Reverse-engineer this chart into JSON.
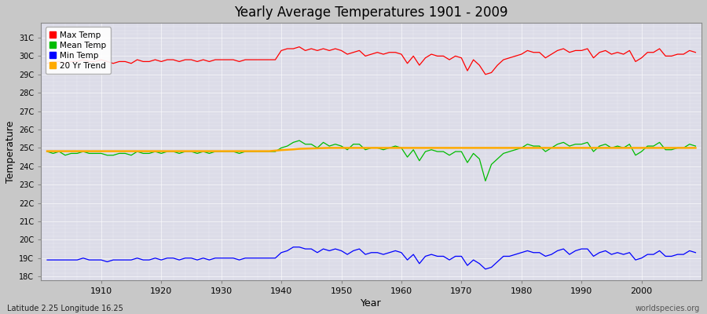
{
  "title": "Yearly Average Temperatures 1901 - 2009",
  "xlabel": "Year",
  "ylabel": "Temperature",
  "subtitle": "Latitude 2.25 Longitude 16.25",
  "watermark": "worldspecies.org",
  "yticks": [
    18,
    19,
    20,
    21,
    22,
    23,
    24,
    25,
    26,
    27,
    28,
    29,
    30,
    31
  ],
  "xlim": [
    1901,
    2009
  ],
  "ylim": [
    17.8,
    31.8
  ],
  "xticks": [
    1910,
    1920,
    1930,
    1940,
    1950,
    1960,
    1970,
    1980,
    1990,
    2000
  ],
  "fig_bg_color": "#c8c8c8",
  "plot_bg_color": "#e0e0e8",
  "line_colors": {
    "max": "#ff0000",
    "mean": "#00bb00",
    "min": "#0000ff",
    "trend": "#ffaa00"
  },
  "legend_labels": [
    "Max Temp",
    "Mean Temp",
    "Min Temp",
    "20 Yr Trend"
  ],
  "years": [
    1901,
    1902,
    1903,
    1904,
    1905,
    1906,
    1907,
    1908,
    1909,
    1910,
    1911,
    1912,
    1913,
    1914,
    1915,
    1916,
    1917,
    1918,
    1919,
    1920,
    1921,
    1922,
    1923,
    1924,
    1925,
    1926,
    1927,
    1928,
    1929,
    1930,
    1931,
    1932,
    1933,
    1934,
    1935,
    1936,
    1937,
    1938,
    1939,
    1940,
    1941,
    1942,
    1943,
    1944,
    1945,
    1946,
    1947,
    1948,
    1949,
    1950,
    1951,
    1952,
    1953,
    1954,
    1955,
    1956,
    1957,
    1958,
    1959,
    1960,
    1961,
    1962,
    1963,
    1964,
    1965,
    1966,
    1967,
    1968,
    1969,
    1970,
    1971,
    1972,
    1973,
    1974,
    1975,
    1976,
    1977,
    1978,
    1979,
    1980,
    1981,
    1982,
    1983,
    1984,
    1985,
    1986,
    1987,
    1988,
    1989,
    1990,
    1991,
    1992,
    1993,
    1994,
    1995,
    1996,
    1997,
    1998,
    1999,
    2000,
    2001,
    2002,
    2003,
    2004,
    2005,
    2006,
    2007,
    2008,
    2009
  ],
  "max_temp": [
    29.6,
    29.7,
    29.7,
    29.6,
    29.7,
    29.7,
    29.8,
    29.7,
    29.7,
    29.8,
    29.7,
    29.6,
    29.7,
    29.7,
    29.6,
    29.8,
    29.7,
    29.7,
    29.8,
    29.7,
    29.8,
    29.8,
    29.7,
    29.8,
    29.8,
    29.7,
    29.8,
    29.7,
    29.8,
    29.8,
    29.8,
    29.8,
    29.7,
    29.8,
    29.8,
    29.8,
    29.8,
    29.8,
    29.8,
    30.3,
    30.4,
    30.4,
    30.5,
    30.3,
    30.4,
    30.3,
    30.4,
    30.3,
    30.4,
    30.3,
    30.1,
    30.2,
    30.3,
    30.0,
    30.1,
    30.2,
    30.1,
    30.2,
    30.2,
    30.1,
    29.6,
    30.0,
    29.5,
    29.9,
    30.1,
    30.0,
    30.0,
    29.8,
    30.0,
    29.9,
    29.2,
    29.8,
    29.5,
    29.0,
    29.1,
    29.5,
    29.8,
    29.9,
    30.0,
    30.1,
    30.3,
    30.2,
    30.2,
    29.9,
    30.1,
    30.3,
    30.4,
    30.2,
    30.3,
    30.3,
    30.4,
    29.9,
    30.2,
    30.3,
    30.1,
    30.2,
    30.1,
    30.3,
    29.7,
    29.9,
    30.2,
    30.2,
    30.4,
    30.0,
    30.0,
    30.1,
    30.1,
    30.3,
    30.2
  ],
  "mean_temp": [
    24.8,
    24.7,
    24.8,
    24.6,
    24.7,
    24.7,
    24.8,
    24.7,
    24.7,
    24.7,
    24.6,
    24.6,
    24.7,
    24.7,
    24.6,
    24.8,
    24.7,
    24.7,
    24.8,
    24.7,
    24.8,
    24.8,
    24.7,
    24.8,
    24.8,
    24.7,
    24.8,
    24.7,
    24.8,
    24.8,
    24.8,
    24.8,
    24.7,
    24.8,
    24.8,
    24.8,
    24.8,
    24.8,
    24.8,
    25.0,
    25.1,
    25.3,
    25.4,
    25.2,
    25.2,
    25.0,
    25.3,
    25.1,
    25.2,
    25.1,
    24.9,
    25.2,
    25.2,
    24.9,
    25.0,
    25.0,
    24.9,
    25.0,
    25.1,
    25.0,
    24.5,
    24.9,
    24.3,
    24.8,
    24.9,
    24.8,
    24.8,
    24.6,
    24.8,
    24.8,
    24.2,
    24.7,
    24.4,
    23.2,
    24.1,
    24.4,
    24.7,
    24.8,
    24.9,
    25.0,
    25.2,
    25.1,
    25.1,
    24.8,
    25.0,
    25.2,
    25.3,
    25.1,
    25.2,
    25.2,
    25.3,
    24.8,
    25.1,
    25.2,
    25.0,
    25.1,
    25.0,
    25.2,
    24.6,
    24.8,
    25.1,
    25.1,
    25.3,
    24.9,
    24.9,
    25.0,
    25.0,
    25.2,
    25.1
  ],
  "min_temp": [
    18.9,
    18.9,
    18.9,
    18.9,
    18.9,
    18.9,
    19.0,
    18.9,
    18.9,
    18.9,
    18.8,
    18.9,
    18.9,
    18.9,
    18.9,
    19.0,
    18.9,
    18.9,
    19.0,
    18.9,
    19.0,
    19.0,
    18.9,
    19.0,
    19.0,
    18.9,
    19.0,
    18.9,
    19.0,
    19.0,
    19.0,
    19.0,
    18.9,
    19.0,
    19.0,
    19.0,
    19.0,
    19.0,
    19.0,
    19.3,
    19.4,
    19.6,
    19.6,
    19.5,
    19.5,
    19.3,
    19.5,
    19.4,
    19.5,
    19.4,
    19.2,
    19.4,
    19.5,
    19.2,
    19.3,
    19.3,
    19.2,
    19.3,
    19.4,
    19.3,
    18.9,
    19.2,
    18.7,
    19.1,
    19.2,
    19.1,
    19.1,
    18.9,
    19.1,
    19.1,
    18.6,
    18.9,
    18.7,
    18.4,
    18.5,
    18.8,
    19.1,
    19.1,
    19.2,
    19.3,
    19.4,
    19.3,
    19.3,
    19.1,
    19.2,
    19.4,
    19.5,
    19.2,
    19.4,
    19.5,
    19.5,
    19.1,
    19.3,
    19.4,
    19.2,
    19.3,
    19.2,
    19.3,
    18.9,
    19.0,
    19.2,
    19.2,
    19.4,
    19.1,
    19.1,
    19.2,
    19.2,
    19.4,
    19.3
  ],
  "trend": [
    24.82,
    24.82,
    24.82,
    24.82,
    24.82,
    24.82,
    24.82,
    24.82,
    24.82,
    24.82,
    24.82,
    24.82,
    24.82,
    24.82,
    24.82,
    24.82,
    24.82,
    24.82,
    24.82,
    24.82,
    24.82,
    24.82,
    24.82,
    24.82,
    24.82,
    24.82,
    24.82,
    24.82,
    24.82,
    24.82,
    24.82,
    24.82,
    24.82,
    24.82,
    24.82,
    24.82,
    24.82,
    24.82,
    24.85,
    24.88,
    24.9,
    24.92,
    24.95,
    24.96,
    24.97,
    24.98,
    24.99,
    25.0,
    25.0,
    25.0,
    25.0,
    25.0,
    25.0,
    25.0,
    25.0,
    25.0,
    25.0,
    25.0,
    25.0,
    25.0,
    25.0,
    25.0,
    25.0,
    25.0,
    25.0,
    25.0,
    25.0,
    25.0,
    25.0,
    25.0,
    25.0,
    25.0,
    25.0,
    25.0,
    25.0,
    25.0,
    25.0,
    25.0,
    25.0,
    25.0,
    25.0,
    25.0,
    25.0,
    25.0,
    25.0,
    25.0,
    25.0,
    25.0,
    25.0,
    25.0,
    25.0,
    25.0,
    25.0,
    25.0,
    25.0,
    25.0,
    25.0,
    25.0,
    25.0,
    25.0,
    25.0,
    25.0,
    25.0,
    25.0,
    25.0,
    25.0,
    25.0,
    25.0,
    25.0
  ]
}
